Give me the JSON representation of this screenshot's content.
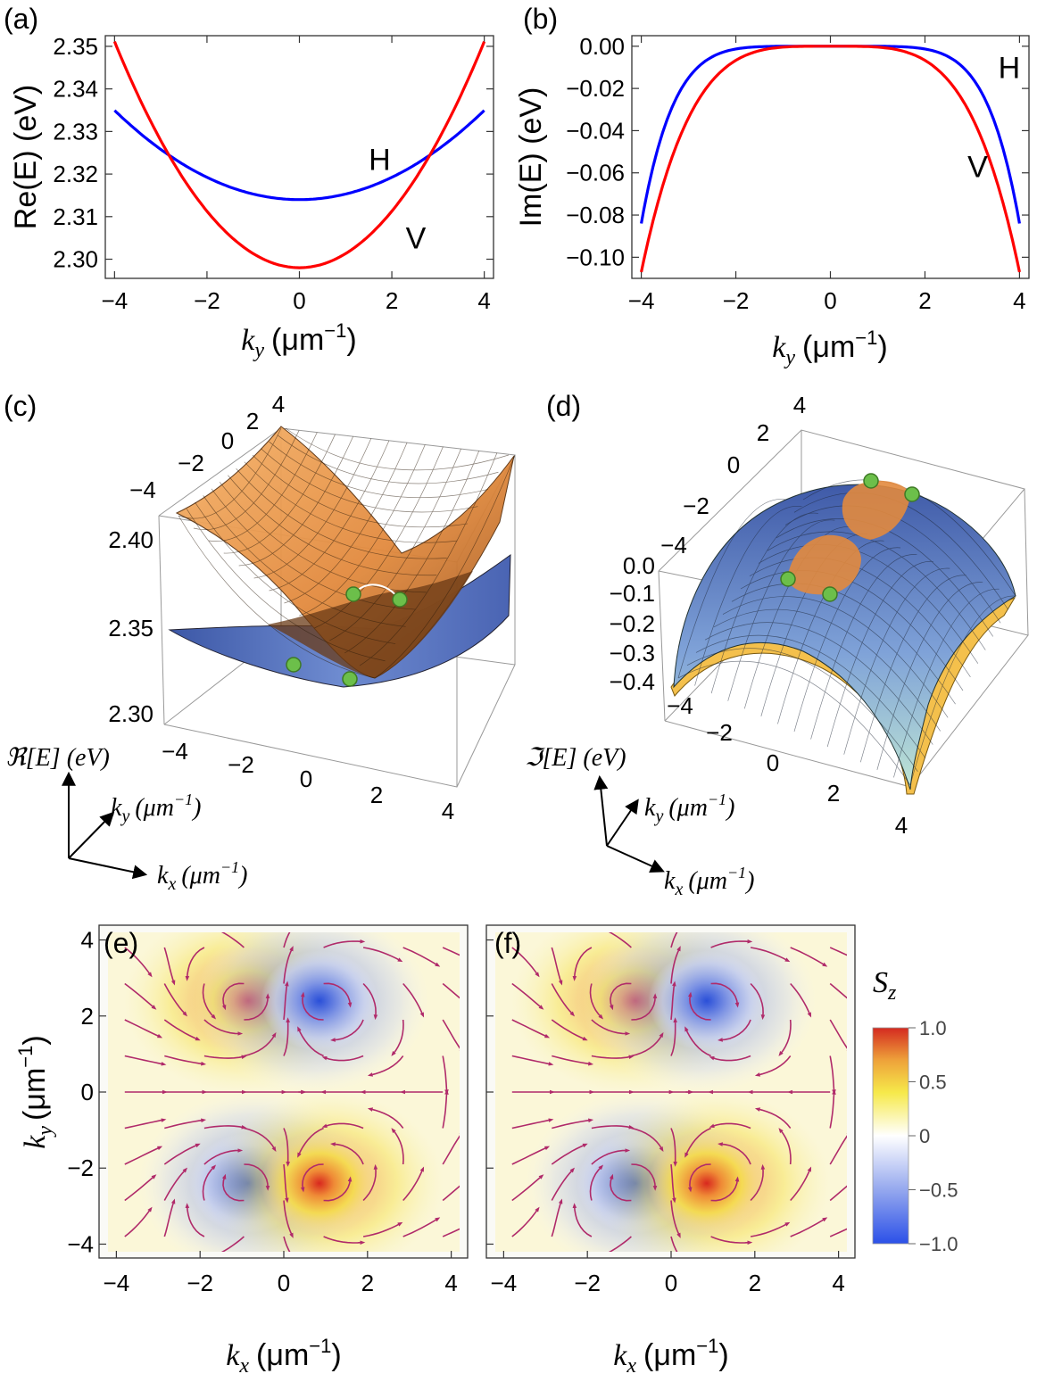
{
  "chart_data": [
    {
      "id": "a",
      "panel_label": "(a)",
      "type": "line",
      "xlabel": "k",
      "xlabel_sub": "y",
      "xlabel_unit": "(μm",
      "xlabel_sup": "−1",
      "xlabel_close": ")",
      "ylabel": "Re(E) (eV)",
      "xlim": [
        -4.2,
        4.2
      ],
      "ylim": [
        2.2955,
        2.3525
      ],
      "xticks": [
        -4,
        -2,
        0,
        2,
        4
      ],
      "xtick_labels": [
        "−4",
        "−2",
        "0",
        "2",
        "4"
      ],
      "yticks": [
        2.3,
        2.31,
        2.32,
        2.33,
        2.34,
        2.35
      ],
      "ytick_labels": [
        "2.30",
        "2.31",
        "2.32",
        "2.33",
        "2.34",
        "2.35"
      ],
      "series": [
        {
          "name": "H",
          "color": "#0000ff",
          "model": "parabola",
          "e0": 2.314,
          "a": 0.00131
        },
        {
          "name": "V",
          "color": "#ff0000",
          "model": "parabola",
          "e0": 2.298,
          "a": 0.00332
        }
      ],
      "annotations": [
        {
          "text": "H",
          "x": 1.5,
          "y": 2.321
        },
        {
          "text": "V",
          "x": 2.3,
          "y": 2.3025
        }
      ]
    },
    {
      "id": "b",
      "panel_label": "(b)",
      "type": "line",
      "xlabel": "k",
      "xlabel_sub": "y",
      "xlabel_unit": "(μm",
      "xlabel_sup": "−1",
      "xlabel_close": ")",
      "ylabel": "Im(E) (eV)",
      "xlim": [
        -4.2,
        4.2
      ],
      "ylim": [
        -0.11,
        0.005
      ],
      "xticks": [
        -4,
        -2,
        0,
        2,
        4
      ],
      "xtick_labels": [
        "−4",
        "−2",
        "0",
        "2",
        "4"
      ],
      "yticks": [
        0,
        -0.02,
        -0.04,
        -0.06,
        -0.08,
        -0.1
      ],
      "ytick_labels": [
        "0.00",
        "−0.02",
        "−0.04",
        "−0.06",
        "−0.08",
        "−0.10"
      ],
      "series": [
        {
          "name": "H",
          "color": "#0000ff",
          "model": "power",
          "amp": -0.084,
          "exp": 6
        },
        {
          "name": "V",
          "color": "#ff0000",
          "model": "power",
          "amp": -0.107,
          "exp": 4
        }
      ],
      "annotations": [
        {
          "text": "H",
          "x": 3.55,
          "y": -0.015
        },
        {
          "text": "V",
          "x": 2.9,
          "y": -0.062
        }
      ]
    },
    {
      "id": "c",
      "panel_label": "(c)",
      "type": "surface3d",
      "zlabel": "ℜ[E] (eV)",
      "ky_label": "k",
      "ky_sub": "y",
      "ky_unit": "(μm",
      "ky_sup": "−1",
      "ky_close": ")",
      "kx_label": "k",
      "kx_sub": "x",
      "kx_unit": "(μm",
      "kx_sup": "−1",
      "kx_close": ")",
      "zticks": [
        "2.40",
        "2.35",
        "2.30"
      ],
      "ky_ticks": [
        "−4",
        "−2",
        "0",
        "2",
        "4"
      ],
      "kx_ticks": [
        "−4",
        "−2",
        "0",
        "2",
        "4"
      ],
      "surfaces": [
        {
          "name": "upper",
          "color": "#e8914a"
        },
        {
          "name": "lower",
          "color": "#5b73b8"
        }
      ],
      "exceptional_points": 4,
      "ep_color": "#6cbf4a"
    },
    {
      "id": "d",
      "panel_label": "(d)",
      "type": "surface3d",
      "zlabel": "ℑ[E] (eV)",
      "ky_label": "k",
      "ky_sub": "y",
      "ky_unit": "(μm",
      "ky_sup": "−1",
      "ky_close": ")",
      "kx_label": "k",
      "kx_sub": "x",
      "kx_unit": "(μm",
      "kx_sup": "−1",
      "kx_close": ")",
      "zticks": [
        "0.0",
        "−0.1",
        "−0.2",
        "−0.3",
        "−0.4"
      ],
      "ky_ticks": [
        "−4",
        "−2",
        "0",
        "2",
        "4"
      ],
      "kx_ticks": [
        "−4",
        "−2",
        "0",
        "2",
        "4"
      ],
      "surfaces": [
        {
          "name": "top",
          "color": "#5b73b8"
        },
        {
          "name": "bottom",
          "color": "#f2c14e"
        }
      ],
      "exceptional_points": 4,
      "ep_color": "#6cbf4a"
    },
    {
      "id": "e",
      "panel_label": "(e)",
      "type": "heatmap",
      "xlabel": "k",
      "xlabel_sub": "x",
      "xlabel_unit": "(μm",
      "xlabel_sup": "−1",
      "xlabel_close": ")",
      "ylabel": "k",
      "ylabel_sub": "y",
      "ylabel_unit": "(μm",
      "ylabel_sup": "−1",
      "ylabel_close": ")",
      "xlim": [
        -4.2,
        4.2
      ],
      "ylim": [
        -4.2,
        4.2
      ],
      "xticks": [
        -4,
        -2,
        0,
        2,
        4
      ],
      "xtick_labels": [
        "−4",
        "−2",
        "0",
        "2",
        "4"
      ],
      "yticks": [
        4,
        2,
        0,
        -2,
        -4
      ],
      "ytick_labels": [
        "4",
        "2",
        "0",
        "−2",
        "−4"
      ],
      "singularities": [
        {
          "kx": -0.85,
          "ky": 2.4,
          "sz": 1
        },
        {
          "kx": 0.85,
          "ky": 2.4,
          "sz": -1
        },
        {
          "kx": -0.85,
          "ky": -2.4,
          "sz": -1
        },
        {
          "kx": 0.85,
          "ky": -2.4,
          "sz": 1
        }
      ]
    },
    {
      "id": "f",
      "panel_label": "(f)",
      "type": "heatmap",
      "xlabel": "k",
      "xlabel_sub": "x",
      "xlabel_unit": "(μm",
      "xlabel_sup": "−1",
      "xlabel_close": ")",
      "xlim": [
        -4.2,
        4.2
      ],
      "ylim": [
        -4.2,
        4.2
      ],
      "xticks": [
        -4,
        -2,
        0,
        2,
        4
      ],
      "xtick_labels": [
        "−4",
        "−2",
        "0",
        "2",
        "4"
      ],
      "yticks": [
        4,
        2,
        0,
        -2,
        -4
      ],
      "singularities": [
        {
          "kx": -0.85,
          "ky": 2.4,
          "sz": 1
        },
        {
          "kx": 0.85,
          "ky": 2.4,
          "sz": -1
        },
        {
          "kx": -0.85,
          "ky": -2.4,
          "sz": -1
        },
        {
          "kx": 0.85,
          "ky": -2.4,
          "sz": 1
        }
      ]
    }
  ],
  "colorbar": {
    "title": "S",
    "title_sub": "z",
    "range": [
      -1.0,
      1.0
    ],
    "ticks": [
      1.0,
      0.5,
      0,
      -0.5,
      -1.0
    ],
    "tick_labels": [
      "1.0",
      "0.5",
      "0",
      "−0.5",
      "−1.0"
    ],
    "colors": [
      "#2b50e8",
      "#ffffff",
      "#f6e94a",
      "#d42a20"
    ]
  }
}
